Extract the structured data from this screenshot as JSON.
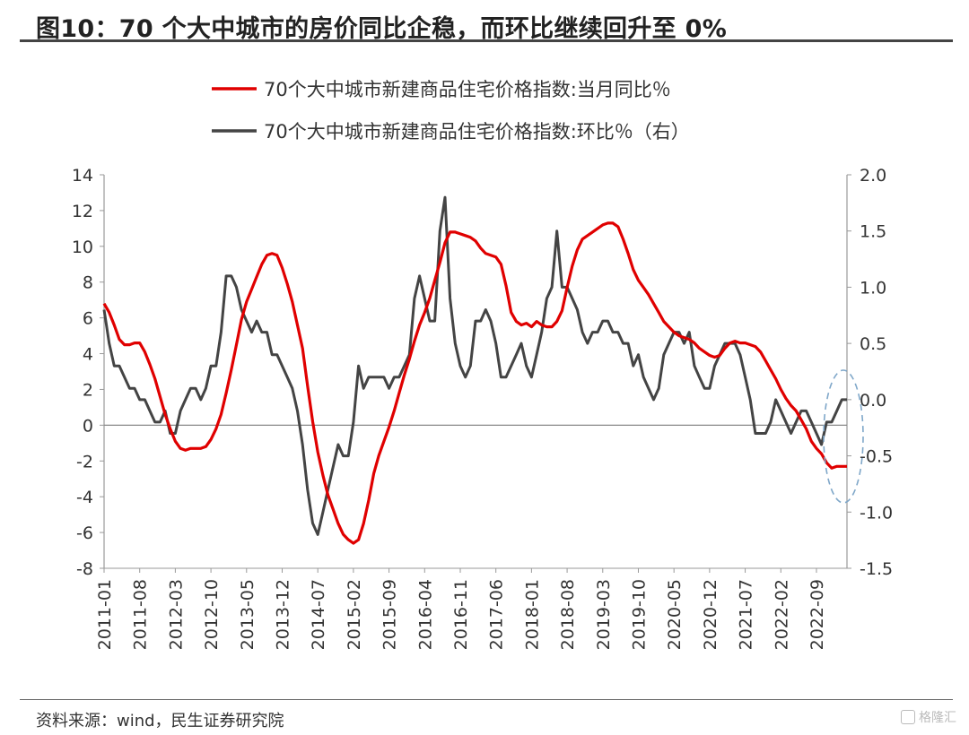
{
  "header": {
    "title": "图10：70 个大中城市的房价同比企稳，而环比继续回升至 0%"
  },
  "footer": {
    "source": "资料来源：wind，民生证券研究院",
    "watermark": "格隆汇"
  },
  "colors": {
    "yoy": "#e00000",
    "mom": "#444444",
    "highlight": "#7fa7c9"
  },
  "chart_data": {
    "type": "line",
    "title": "",
    "x": [
      "2011-01",
      "2011-02",
      "2011-03",
      "2011-04",
      "2011-05",
      "2011-06",
      "2011-07",
      "2011-08",
      "2011-09",
      "2011-10",
      "2011-11",
      "2011-12",
      "2012-01",
      "2012-02",
      "2012-03",
      "2012-04",
      "2012-05",
      "2012-06",
      "2012-07",
      "2012-08",
      "2012-09",
      "2012-10",
      "2012-11",
      "2012-12",
      "2013-01",
      "2013-02",
      "2013-03",
      "2013-04",
      "2013-05",
      "2013-06",
      "2013-07",
      "2013-08",
      "2013-09",
      "2013-10",
      "2013-11",
      "2013-12",
      "2014-01",
      "2014-02",
      "2014-03",
      "2014-04",
      "2014-05",
      "2014-06",
      "2014-07",
      "2014-08",
      "2014-09",
      "2014-10",
      "2014-11",
      "2014-12",
      "2015-01",
      "2015-02",
      "2015-03",
      "2015-04",
      "2015-05",
      "2015-06",
      "2015-07",
      "2015-08",
      "2015-09",
      "2015-10",
      "2015-11",
      "2015-12",
      "2016-01",
      "2016-02",
      "2016-03",
      "2016-04",
      "2016-05",
      "2016-06",
      "2016-07",
      "2016-08",
      "2016-09",
      "2016-10",
      "2016-11",
      "2016-12",
      "2017-01",
      "2017-02",
      "2017-03",
      "2017-04",
      "2017-05",
      "2017-06",
      "2017-07",
      "2017-08",
      "2017-09",
      "2017-10",
      "2017-11",
      "2017-12",
      "2018-01",
      "2018-02",
      "2018-03",
      "2018-04",
      "2018-05",
      "2018-06",
      "2018-07",
      "2018-08",
      "2018-09",
      "2018-10",
      "2018-11",
      "2018-12",
      "2019-01",
      "2019-02",
      "2019-03",
      "2019-04",
      "2019-05",
      "2019-06",
      "2019-07",
      "2019-08",
      "2019-09",
      "2019-10",
      "2019-11",
      "2019-12",
      "2020-01",
      "2020-02",
      "2020-03",
      "2020-04",
      "2020-05",
      "2020-06",
      "2020-07",
      "2020-08",
      "2020-09",
      "2020-10",
      "2020-11",
      "2020-12",
      "2021-01",
      "2021-02",
      "2021-03",
      "2021-04",
      "2021-05",
      "2021-06",
      "2021-07",
      "2021-08",
      "2021-09",
      "2021-10",
      "2021-11",
      "2021-12",
      "2022-01",
      "2022-02",
      "2022-03",
      "2022-04",
      "2022-05",
      "2022-06",
      "2022-07",
      "2022-08",
      "2022-09",
      "2022-10",
      "2022-11",
      "2022-12",
      "2023-01",
      "2023-02",
      "2023-03"
    ],
    "x_tick_labels": [
      "2011-01",
      "2011-08",
      "2012-03",
      "2012-10",
      "2013-05",
      "2013-12",
      "2014-07",
      "2015-02",
      "2015-09",
      "2016-04",
      "2016-11",
      "2017-06",
      "2018-01",
      "2018-08",
      "2019-03",
      "2019-10",
      "2020-05",
      "2020-12",
      "2021-07",
      "2022-02",
      "2022-09"
    ],
    "ylim_left": [
      -8,
      14
    ],
    "yticks_left": [
      "14",
      "12",
      "10",
      "8",
      "6",
      "4",
      "2",
      "0",
      "-2",
      "-4",
      "-6",
      "-8"
    ],
    "ylim_right": [
      -1.5,
      2.0
    ],
    "yticks_right": [
      "2.0",
      "1.5",
      "1.0",
      "0.5",
      "0.0",
      "-0.5",
      "-1.0",
      "-1.5"
    ],
    "legend_position": "top-center",
    "series": [
      {
        "name": "70个大中城市新建商品住宅价格指数:当月同比％",
        "axis": "left",
        "values": [
          6.8,
          6.3,
          5.6,
          4.8,
          4.5,
          4.5,
          4.6,
          4.6,
          4.1,
          3.4,
          2.6,
          1.6,
          0.6,
          -0.2,
          -0.9,
          -1.3,
          -1.4,
          -1.3,
          -1.3,
          -1.3,
          -1.2,
          -0.8,
          -0.2,
          0.6,
          1.8,
          3.1,
          4.5,
          5.9,
          6.9,
          7.6,
          8.3,
          9.0,
          9.5,
          9.6,
          9.5,
          8.8,
          7.9,
          6.9,
          5.6,
          4.3,
          2.2,
          0.2,
          -1.5,
          -2.8,
          -3.9,
          -4.7,
          -5.5,
          -6.1,
          -6.4,
          -6.6,
          -6.4,
          -5.5,
          -4.2,
          -2.7,
          -1.7,
          -0.9,
          -0.1,
          0.8,
          1.8,
          2.8,
          3.7,
          4.7,
          5.6,
          6.3,
          7.1,
          8.1,
          9.1,
          10.2,
          10.8,
          10.8,
          10.7,
          10.6,
          10.5,
          10.3,
          9.9,
          9.6,
          9.5,
          9.4,
          9.0,
          7.8,
          6.3,
          5.8,
          5.6,
          5.7,
          5.5,
          5.8,
          5.6,
          5.5,
          5.5,
          5.8,
          6.4,
          7.7,
          8.9,
          9.8,
          10.4,
          10.6,
          10.8,
          11.0,
          11.2,
          11.3,
          11.3,
          11.1,
          10.4,
          9.6,
          8.7,
          8.1,
          7.7,
          7.3,
          6.8,
          6.3,
          5.8,
          5.5,
          5.2,
          5.0,
          4.9,
          4.8,
          4.6,
          4.3,
          4.1,
          3.9,
          3.8,
          3.9,
          4.3,
          4.6,
          4.7,
          4.6,
          4.6,
          4.5,
          4.4,
          4.1,
          3.6,
          3.1,
          2.6,
          2.0,
          1.5,
          1.1,
          0.8,
          0.3,
          -0.2,
          -0.9,
          -1.3,
          -1.6,
          -2.1,
          -2.4,
          -2.3,
          -2.3,
          -2.3
        ]
      },
      {
        "name": "70个大中城市新建商品住宅价格指数:环比％（右）",
        "axis": "right",
        "values": [
          0.8,
          0.5,
          0.3,
          0.3,
          0.2,
          0.1,
          0.1,
          0.0,
          0.0,
          -0.1,
          -0.2,
          -0.2,
          -0.1,
          -0.3,
          -0.3,
          -0.1,
          0.0,
          0.1,
          0.1,
          0.0,
          0.1,
          0.3,
          0.3,
          0.6,
          1.1,
          1.1,
          1.0,
          0.8,
          0.7,
          0.6,
          0.7,
          0.6,
          0.6,
          0.4,
          0.4,
          0.3,
          0.2,
          0.1,
          -0.1,
          -0.4,
          -0.8,
          -1.1,
          -1.2,
          -1.0,
          -0.8,
          -0.6,
          -0.4,
          -0.5,
          -0.5,
          -0.2,
          0.3,
          0.1,
          0.2,
          0.2,
          0.2,
          0.2,
          0.1,
          0.2,
          0.2,
          0.3,
          0.4,
          0.9,
          1.1,
          0.9,
          0.7,
          0.7,
          1.5,
          1.8,
          0.9,
          0.5,
          0.3,
          0.2,
          0.3,
          0.7,
          0.7,
          0.8,
          0.7,
          0.5,
          0.2,
          0.2,
          0.3,
          0.4,
          0.5,
          0.3,
          0.2,
          0.4,
          0.6,
          0.9,
          1.0,
          1.5,
          1.0,
          1.0,
          0.9,
          0.8,
          0.6,
          0.5,
          0.6,
          0.6,
          0.7,
          0.7,
          0.6,
          0.6,
          0.5,
          0.5,
          0.3,
          0.4,
          0.2,
          0.1,
          0.0,
          0.1,
          0.4,
          0.5,
          0.6,
          0.6,
          0.5,
          0.6,
          0.3,
          0.2,
          0.1,
          0.1,
          0.3,
          0.4,
          0.5,
          0.5,
          0.5,
          0.4,
          0.2,
          0.0,
          -0.3,
          -0.3,
          -0.3,
          -0.2,
          0.0,
          -0.1,
          -0.2,
          -0.3,
          -0.2,
          -0.1,
          -0.1,
          -0.2,
          -0.3,
          -0.4,
          -0.2,
          -0.2,
          -0.1,
          0.0,
          0.0
        ]
      }
    ],
    "annotation": "dashed ellipse highlighting latest points"
  }
}
